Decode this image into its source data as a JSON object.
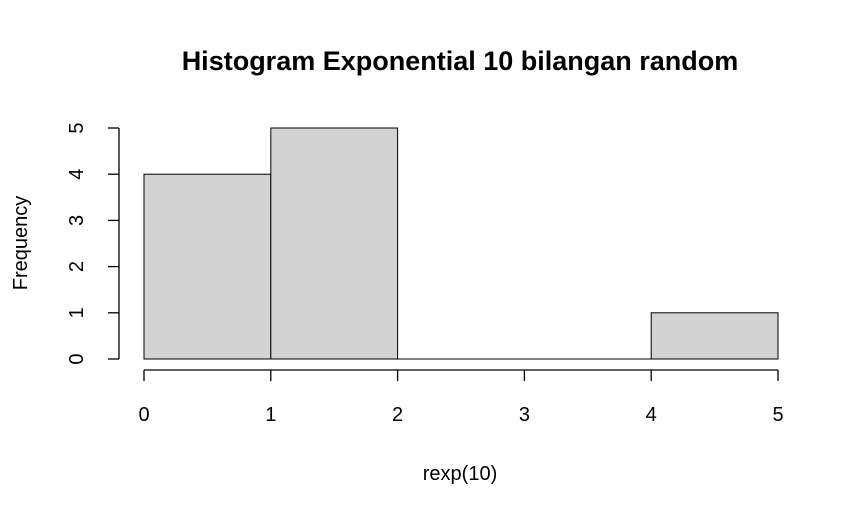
{
  "chart_data": {
    "type": "bar",
    "title": "Histogram Exponential 10 bilangan random",
    "xlabel": "rexp(10)",
    "ylabel": "Frequency",
    "bins": [
      {
        "from": 0,
        "to": 1,
        "count": 4
      },
      {
        "from": 1,
        "to": 2,
        "count": 5
      },
      {
        "from": 2,
        "to": 3,
        "count": 0
      },
      {
        "from": 3,
        "to": 4,
        "count": 0
      },
      {
        "from": 4,
        "to": 5,
        "count": 1
      }
    ],
    "xlim": [
      0,
      5
    ],
    "ylim": [
      0,
      5
    ],
    "xticks": [
      "0",
      "1",
      "2",
      "3",
      "4",
      "5"
    ],
    "yticks": [
      "0",
      "1",
      "2",
      "3",
      "4",
      "5"
    ],
    "bar_color": "#d3d3d3",
    "grid": false
  }
}
